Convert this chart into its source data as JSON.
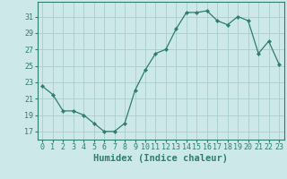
{
  "x": [
    0,
    1,
    2,
    3,
    4,
    5,
    6,
    7,
    8,
    9,
    10,
    11,
    12,
    13,
    14,
    15,
    16,
    17,
    18,
    19,
    20,
    21,
    22,
    23
  ],
  "y": [
    22.5,
    21.5,
    19.5,
    19.5,
    19.0,
    18.0,
    17.0,
    17.0,
    18.0,
    22.0,
    24.5,
    26.5,
    27.0,
    29.5,
    31.5,
    31.5,
    31.7,
    30.5,
    30.0,
    31.0,
    30.5,
    26.5,
    28.0,
    25.2
  ],
  "line_color": "#2e7d6e",
  "marker": "D",
  "marker_size": 2.2,
  "bg_color": "#cce8e8",
  "grid_color": "#aacccc",
  "xlabel": "Humidex (Indice chaleur)",
  "xlim": [
    -0.5,
    23.5
  ],
  "ylim": [
    16.0,
    32.8
  ],
  "yticks": [
    17,
    19,
    21,
    23,
    25,
    27,
    29,
    31
  ],
  "xtick_labels": [
    "0",
    "1",
    "2",
    "3",
    "4",
    "5",
    "6",
    "7",
    "8",
    "9",
    "10",
    "11",
    "12",
    "13",
    "14",
    "15",
    "16",
    "17",
    "18",
    "19",
    "20",
    "21",
    "22",
    "23"
  ],
  "spine_color": "#2e7d6e",
  "tick_color": "#2e7d6e",
  "label_color": "#2e7d6e",
  "font_size": 6.0,
  "xlabel_font_size": 7.5
}
